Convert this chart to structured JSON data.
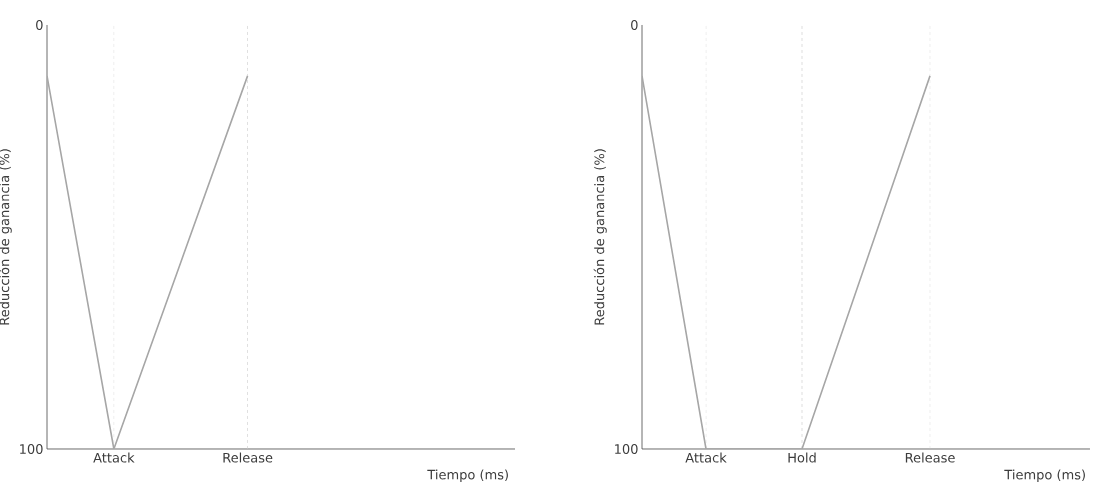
{
  "chart_data": [
    {
      "type": "line",
      "xlabel": "Tiempo (ms)",
      "ylabel": "Reducción de ganancia (%)",
      "categories": [
        null,
        null,
        "Attack",
        null,
        null,
        null,
        "Release",
        null,
        null,
        null,
        null,
        null,
        null,
        null,
        null
      ],
      "ylim": [
        100,
        0
      ],
      "yticks": [
        0,
        100
      ],
      "series": [
        {
          "color": "#a6a6a6",
          "values": [
            12,
            56,
            100,
            78,
            56,
            34,
            12,
            null,
            null,
            null,
            null,
            null,
            null,
            null,
            null
          ]
        }
      ],
      "ref_lines": [
        {
          "axis": "x",
          "value": "Attack",
          "color": "#c8c8c8",
          "line_style": "dashed"
        },
        {
          "axis": "x",
          "value": "Release",
          "color": "#c8c8c8",
          "line_style": "dashed"
        }
      ]
    },
    {
      "type": "line",
      "xlabel": "Tiempo (ms)",
      "ylabel": "Reducción de ganancia (%)",
      "categories": [
        null,
        null,
        "Attack",
        null,
        null,
        "Hold",
        null,
        null,
        null,
        "Release",
        null,
        null,
        null,
        null,
        null
      ],
      "ylim": [
        100,
        0
      ],
      "yticks": [
        0,
        100
      ],
      "series": [
        {
          "color": "#a6a6a6",
          "values": [
            12,
            56,
            100,
            100,
            100,
            100,
            78,
            56,
            34,
            12,
            null,
            null,
            null,
            null,
            null
          ]
        }
      ],
      "ref_lines": [
        {
          "axis": "x",
          "value": "Attack",
          "color": "#c8c8c8",
          "line_style": "dashed"
        },
        {
          "axis": "x",
          "value": "Hold",
          "color": "#c8c8c8",
          "line_style": "dashed"
        },
        {
          "axis": "x",
          "value": "Release",
          "color": "#c8c8c8",
          "line_style": "dashed"
        }
      ]
    }
  ]
}
